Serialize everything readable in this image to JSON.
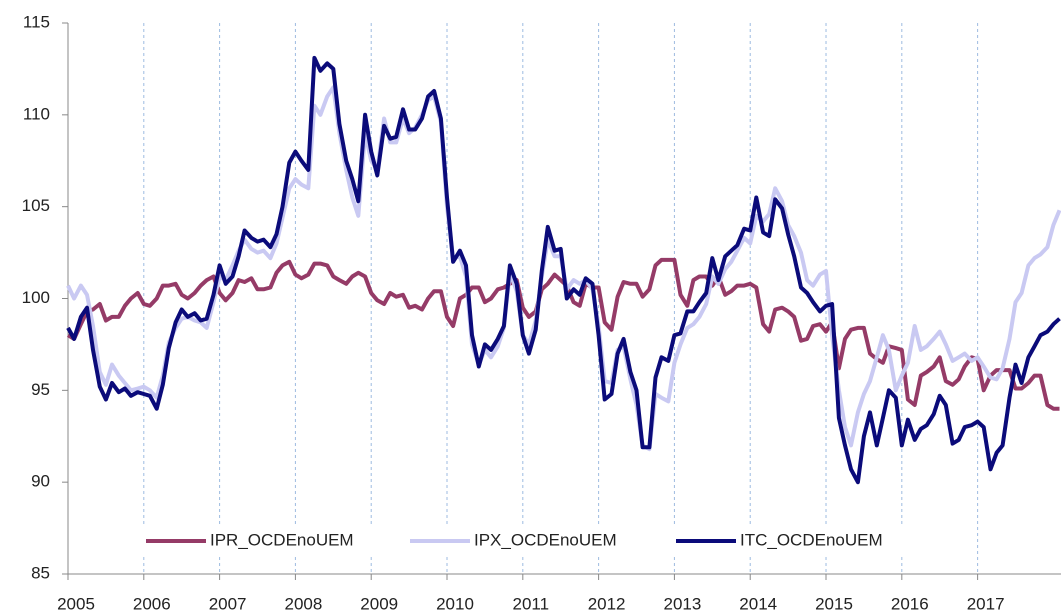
{
  "chart_data": {
    "type": "line",
    "x": [
      2005,
      2005.08,
      2005.17,
      2005.25,
      2005.33,
      2005.42,
      2005.5,
      2005.58,
      2005.67,
      2005.75,
      2005.83,
      2005.92,
      2006,
      2006.08,
      2006.17,
      2006.25,
      2006.33,
      2006.42,
      2006.5,
      2006.58,
      2006.67,
      2006.75,
      2006.83,
      2006.92,
      2007,
      2007.08,
      2007.17,
      2007.25,
      2007.33,
      2007.42,
      2007.5,
      2007.58,
      2007.67,
      2007.75,
      2007.83,
      2007.92,
      2008,
      2008.08,
      2008.17,
      2008.25,
      2008.33,
      2008.42,
      2008.5,
      2008.58,
      2008.67,
      2008.75,
      2008.83,
      2008.92,
      2009,
      2009.08,
      2009.17,
      2009.25,
      2009.33,
      2009.42,
      2009.5,
      2009.58,
      2009.67,
      2009.75,
      2009.83,
      2009.92,
      2010,
      2010.08,
      2010.17,
      2010.25,
      2010.33,
      2010.42,
      2010.5,
      2010.58,
      2010.67,
      2010.75,
      2010.83,
      2010.92,
      2011,
      2011.08,
      2011.17,
      2011.25,
      2011.33,
      2011.42,
      2011.5,
      2011.58,
      2011.67,
      2011.75,
      2011.83,
      2011.92,
      2012,
      2012.08,
      2012.17,
      2012.25,
      2012.33,
      2012.42,
      2012.5,
      2012.58,
      2012.67,
      2012.75,
      2012.83,
      2012.92,
      2013,
      2013.08,
      2013.17,
      2013.25,
      2013.33,
      2013.42,
      2013.5,
      2013.58,
      2013.67,
      2013.75,
      2013.83,
      2013.92,
      2014,
      2014.08,
      2014.17,
      2014.25,
      2014.33,
      2014.42,
      2014.5,
      2014.58,
      2014.67,
      2014.75,
      2014.83,
      2014.92,
      2015,
      2015.08,
      2015.17,
      2015.25,
      2015.33,
      2015.42,
      2015.5,
      2015.58,
      2015.67,
      2015.75,
      2015.83,
      2015.92,
      2016,
      2016.08,
      2016.17,
      2016.25,
      2016.33,
      2016.42,
      2016.5,
      2016.58,
      2016.67,
      2016.75,
      2016.83,
      2016.92,
      2017,
      2017.08,
      2017.17,
      2017.25,
      2017.33,
      2017.42,
      2017.5,
      2017.58,
      2017.67,
      2017.75,
      2017.83,
      2017.92,
      2018,
      2018.08
    ],
    "series": [
      {
        "name": "IPR_OCDEnoUEM",
        "color": "#953b67",
        "values": [
          98.0,
          97.8,
          98.6,
          99.3,
          99.4,
          99.7,
          98.8,
          99.0,
          99.0,
          99.6,
          100.0,
          100.3,
          99.7,
          99.6,
          100.0,
          100.7,
          100.7,
          100.8,
          100.2,
          100.0,
          100.3,
          100.7,
          101.0,
          101.2,
          100.3,
          99.9,
          100.3,
          101.0,
          100.9,
          101.1,
          100.5,
          100.5,
          100.6,
          101.4,
          101.8,
          102.0,
          101.3,
          101.1,
          101.3,
          101.9,
          101.9,
          101.8,
          101.2,
          101.0,
          100.8,
          101.2,
          101.4,
          101.2,
          100.3,
          99.9,
          99.7,
          100.3,
          100.1,
          100.2,
          99.5,
          99.6,
          99.4,
          100.0,
          100.4,
          100.4,
          99.0,
          98.5,
          100.0,
          100.2,
          100.6,
          100.6,
          99.8,
          100.0,
          100.5,
          100.6,
          100.8,
          101.0,
          99.5,
          99.0,
          99.3,
          100.5,
          100.8,
          101.3,
          101.0,
          100.7,
          99.8,
          99.6,
          100.8,
          100.6,
          100.6,
          98.7,
          98.3,
          100.1,
          100.9,
          100.8,
          100.8,
          100.1,
          100.5,
          101.8,
          102.1,
          102.1,
          102.1,
          100.2,
          99.6,
          101.0,
          101.2,
          101.2,
          100.7,
          101.2,
          100.2,
          100.4,
          100.7,
          100.7,
          100.8,
          100.6,
          98.6,
          98.2,
          99.4,
          99.5,
          99.3,
          99.0,
          97.7,
          97.8,
          98.5,
          98.6,
          98.2,
          98.7,
          96.2,
          97.8,
          98.3,
          98.4,
          98.4,
          97.0,
          96.7,
          96.5,
          97.4,
          97.3,
          97.2,
          94.5,
          94.2,
          95.8,
          96.0,
          96.3,
          96.8,
          95.5,
          95.3,
          95.6,
          96.3,
          96.8,
          96.7,
          95.0,
          95.8,
          96.1,
          96.1,
          96.1,
          95.1,
          95.1,
          95.4,
          95.8,
          95.8,
          94.2,
          94.0,
          94.0
        ]
      },
      {
        "name": "IPX_OCDEnoUEM",
        "color": "#c9c9f2",
        "values": [
          100.7,
          100.0,
          100.7,
          100.2,
          98.5,
          96.0,
          95.3,
          96.4,
          95.8,
          95.4,
          95.0,
          95.1,
          95.2,
          95.0,
          94.6,
          95.8,
          97.6,
          98.4,
          98.9,
          99.0,
          98.8,
          98.7,
          98.4,
          99.8,
          101.2,
          101.0,
          101.8,
          102.6,
          103.2,
          102.7,
          102.5,
          102.6,
          102.2,
          103.0,
          104.4,
          106.0,
          106.5,
          106.2,
          106.0,
          110.5,
          110.0,
          111.0,
          111.5,
          109.0,
          107.0,
          105.5,
          104.5,
          109.0,
          107.5,
          107.0,
          109.8,
          108.5,
          108.5,
          109.8,
          109.0,
          109.3,
          110.0,
          110.8,
          111.0,
          109.6,
          105.0,
          102.2,
          102.3,
          101.2,
          97.5,
          96.4,
          97.2,
          96.8,
          97.4,
          98.4,
          101.4,
          100.4,
          98.0,
          97.5,
          98.8,
          101.2,
          103.2,
          102.3,
          102.3,
          100.5,
          101.0,
          100.8,
          101.0,
          100.5,
          98.5,
          95.5,
          95.4,
          97.2,
          97.4,
          95.6,
          94.2,
          92.0,
          91.8,
          94.8,
          94.6,
          94.4,
          96.5,
          97.5,
          98.4,
          98.6,
          99.0,
          99.7,
          101.2,
          100.8,
          101.6,
          102.0,
          102.6,
          103.3,
          103.0,
          104.5,
          104.2,
          104.6,
          106.0,
          105.3,
          104.0,
          103.4,
          102.5,
          101.0,
          100.7,
          101.3,
          101.5,
          98.0,
          95.0,
          93.0,
          92.0,
          93.8,
          94.8,
          95.5,
          96.8,
          98.0,
          97.2,
          95.0,
          95.8,
          96.5,
          98.5,
          97.2,
          97.4,
          97.8,
          98.2,
          97.5,
          96.6,
          96.8,
          97.0,
          96.6,
          96.8,
          96.3,
          95.7,
          95.6,
          96.2,
          97.8,
          99.8,
          100.3,
          101.8,
          102.2,
          102.4,
          102.8,
          104.0,
          104.8
        ]
      },
      {
        "name": "ITC_OCDEnoUEM",
        "color": "#0b0b7a",
        "values": [
          98.4,
          97.8,
          99.0,
          99.5,
          97.2,
          95.2,
          94.5,
          95.4,
          94.9,
          95.1,
          94.7,
          94.9,
          94.8,
          94.7,
          94.0,
          95.3,
          97.3,
          98.7,
          99.4,
          99.0,
          99.2,
          98.8,
          98.9,
          100.2,
          101.8,
          100.8,
          101.2,
          102.3,
          103.7,
          103.3,
          103.1,
          103.2,
          102.8,
          103.5,
          105.0,
          107.4,
          108.0,
          107.5,
          107.0,
          113.1,
          112.4,
          112.8,
          112.5,
          109.5,
          107.5,
          106.5,
          105.3,
          110.0,
          108.0,
          106.7,
          109.4,
          108.7,
          108.8,
          110.3,
          109.2,
          109.2,
          109.8,
          111.0,
          111.3,
          109.8,
          105.5,
          102.0,
          102.6,
          101.8,
          98.0,
          96.3,
          97.5,
          97.2,
          97.8,
          98.5,
          101.8,
          100.8,
          98.0,
          97.0,
          98.3,
          101.5,
          103.9,
          102.6,
          102.7,
          100.0,
          100.5,
          100.2,
          101.1,
          100.8,
          98.0,
          94.5,
          94.8,
          97.0,
          97.8,
          96.0,
          95.0,
          91.9,
          91.9,
          95.7,
          96.8,
          96.6,
          98.0,
          98.1,
          99.3,
          99.3,
          99.8,
          100.3,
          102.2,
          101.0,
          102.3,
          102.6,
          102.9,
          103.8,
          103.7,
          105.5,
          103.6,
          103.4,
          105.4,
          104.9,
          103.5,
          102.3,
          100.6,
          100.3,
          99.8,
          99.3,
          99.6,
          99.7,
          93.5,
          92.0,
          90.7,
          90.0,
          92.5,
          93.8,
          92.0,
          93.5,
          95.0,
          94.6,
          92.0,
          93.4,
          92.3,
          92.9,
          93.1,
          93.7,
          94.7,
          94.2,
          92.1,
          92.3,
          93.0,
          93.1,
          93.3,
          93.0,
          90.7,
          91.6,
          92.0,
          94.6,
          96.4,
          95.4,
          96.8,
          97.4,
          98.0,
          98.2,
          98.6,
          98.9
        ]
      }
    ],
    "xlim": [
      2005,
      2018.1
    ],
    "xticks": [
      2005,
      2006,
      2007,
      2008,
      2009,
      2010,
      2011,
      2012,
      2013,
      2014,
      2015,
      2016,
      2017
    ],
    "ylim": [
      85,
      115
    ],
    "yticks": [
      85,
      90,
      95,
      100,
      105,
      110,
      115
    ],
    "grid": "x",
    "legend": "bottom"
  }
}
